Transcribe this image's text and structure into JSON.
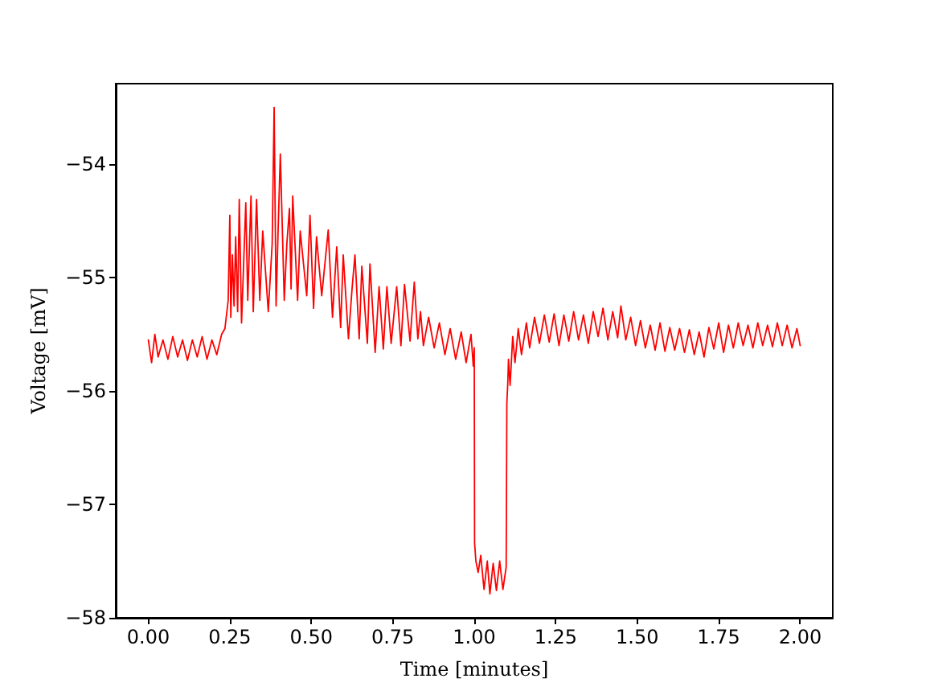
{
  "chart_data": {
    "type": "line",
    "xlabel": "Time [minutes]",
    "ylabel": "Voltage [mV]",
    "xlim": [
      -0.1,
      2.1
    ],
    "ylim": [
      -58.0,
      -53.29
    ],
    "xticks": [
      {
        "value": 0,
        "label": "0.00"
      },
      {
        "value": 0.25,
        "label": "0.25"
      },
      {
        "value": 0.5,
        "label": "0.50"
      },
      {
        "value": 0.75,
        "label": "0.75"
      },
      {
        "value": 1,
        "label": "1.00"
      },
      {
        "value": 1.25,
        "label": "1.25"
      },
      {
        "value": 1.5,
        "label": "1.50"
      },
      {
        "value": 1.75,
        "label": "1.75"
      },
      {
        "value": 2,
        "label": "2.00"
      }
    ],
    "yticks": [
      {
        "value": -58,
        "label": "−58"
      },
      {
        "value": -57,
        "label": "−57"
      },
      {
        "value": -56,
        "label": "−56"
      },
      {
        "value": -55,
        "label": "−55"
      },
      {
        "value": -54,
        "label": "−54"
      }
    ],
    "series": [
      {
        "color": "#ff0000",
        "x": [
          0,
          0.01,
          0.02,
          0.03,
          0.045,
          0.06,
          0.075,
          0.09,
          0.105,
          0.12,
          0.135,
          0.15,
          0.165,
          0.18,
          0.195,
          0.21,
          0.225,
          0.235,
          0.245,
          0.25,
          0.253,
          0.258,
          0.263,
          0.268,
          0.274,
          0.279,
          0.286,
          0.299,
          0.305,
          0.315,
          0.322,
          0.332,
          0.342,
          0.351,
          0.368,
          0.38,
          0.386,
          0.392,
          0.398,
          0.405,
          0.417,
          0.425,
          0.433,
          0.438,
          0.443,
          0.458,
          0.466,
          0.486,
          0.496,
          0.507,
          0.516,
          0.532,
          0.552,
          0.565,
          0.578,
          0.59,
          0.598,
          0.614,
          0.625,
          0.634,
          0.647,
          0.655,
          0.672,
          0.68,
          0.696,
          0.708,
          0.721,
          0.732,
          0.745,
          0.762,
          0.775,
          0.786,
          0.803,
          0.816,
          0.827,
          0.835,
          0.844,
          0.86,
          0.877,
          0.893,
          0.91,
          0.926,
          0.943,
          0.96,
          0.975,
          0.99,
          0.997,
          1.0,
          1.001,
          1.005,
          1.012,
          1.02,
          1.03,
          1.04,
          1.048,
          1.058,
          1.068,
          1.078,
          1.088,
          1.098,
          1.1,
          1.103,
          1.105,
          1.11,
          1.118,
          1.125,
          1.135,
          1.145,
          1.16,
          1.17,
          1.185,
          1.2,
          1.215,
          1.23,
          1.245,
          1.26,
          1.275,
          1.29,
          1.305,
          1.32,
          1.335,
          1.35,
          1.365,
          1.38,
          1.395,
          1.41,
          1.425,
          1.44,
          1.45,
          1.465,
          1.48,
          1.495,
          1.51,
          1.525,
          1.54,
          1.555,
          1.57,
          1.585,
          1.6,
          1.615,
          1.63,
          1.645,
          1.66,
          1.675,
          1.69,
          1.705,
          1.72,
          1.735,
          1.75,
          1.765,
          1.78,
          1.795,
          1.81,
          1.825,
          1.84,
          1.855,
          1.87,
          1.885,
          1.9,
          1.915,
          1.93,
          1.945,
          1.96,
          1.975,
          1.99,
          2.0
        ],
        "values": [
          -55.55,
          -55.75,
          -55.5,
          -55.7,
          -55.55,
          -55.72,
          -55.52,
          -55.7,
          -55.55,
          -55.73,
          -55.55,
          -55.7,
          -55.52,
          -55.72,
          -55.55,
          -55.68,
          -55.5,
          -55.45,
          -55.2,
          -54.45,
          -55.35,
          -54.8,
          -55.25,
          -54.64,
          -55.3,
          -54.31,
          -55.4,
          -54.34,
          -55.2,
          -54.28,
          -55.3,
          -54.31,
          -55.2,
          -54.59,
          -55.3,
          -54.7,
          -53.5,
          -55.25,
          -54.6,
          -53.91,
          -55.2,
          -54.7,
          -54.39,
          -55.1,
          -54.28,
          -55.2,
          -54.59,
          -55.16,
          -54.45,
          -55.27,
          -54.64,
          -55.16,
          -54.58,
          -55.35,
          -54.73,
          -55.44,
          -54.8,
          -55.54,
          -55.1,
          -54.8,
          -55.54,
          -54.9,
          -55.58,
          -54.88,
          -55.66,
          -55.08,
          -55.63,
          -55.08,
          -55.58,
          -55.08,
          -55.6,
          -55.06,
          -55.56,
          -55.04,
          -55.54,
          -55.3,
          -55.6,
          -55.35,
          -55.62,
          -55.4,
          -55.68,
          -55.45,
          -55.72,
          -55.48,
          -55.75,
          -55.5,
          -55.78,
          -55.62,
          -57.34,
          -57.5,
          -57.6,
          -57.45,
          -57.75,
          -57.5,
          -57.79,
          -57.52,
          -57.76,
          -57.5,
          -57.75,
          -57.55,
          -56.11,
          -55.92,
          -55.72,
          -55.95,
          -55.52,
          -55.75,
          -55.45,
          -55.68,
          -55.4,
          -55.62,
          -55.35,
          -55.58,
          -55.33,
          -55.57,
          -55.32,
          -55.6,
          -55.33,
          -55.56,
          -55.3,
          -55.55,
          -55.33,
          -55.58,
          -55.3,
          -55.52,
          -55.27,
          -55.55,
          -55.3,
          -55.53,
          -55.25,
          -55.55,
          -55.35,
          -55.6,
          -55.38,
          -55.62,
          -55.42,
          -55.64,
          -55.4,
          -55.65,
          -55.44,
          -55.64,
          -55.45,
          -55.66,
          -55.46,
          -55.68,
          -55.48,
          -55.7,
          -55.44,
          -55.63,
          -55.4,
          -55.66,
          -55.42,
          -55.62,
          -55.4,
          -55.6,
          -55.42,
          -55.62,
          -55.4,
          -55.6,
          -55.42,
          -55.61,
          -55.4,
          -55.6,
          -55.42,
          -55.62,
          -55.45,
          -55.6
        ]
      }
    ]
  }
}
